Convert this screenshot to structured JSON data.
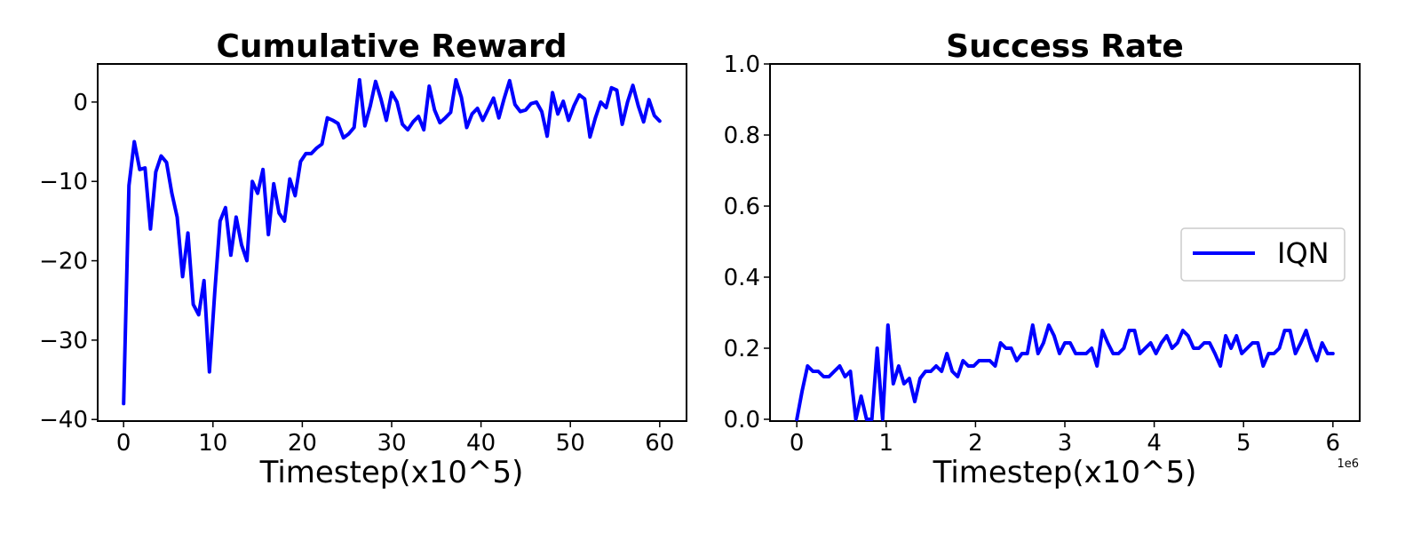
{
  "colors": {
    "series": "#0000ff"
  },
  "chart_data": [
    {
      "type": "line",
      "title": "Cumulative Reward",
      "xlabel": "Timestep(x10^5)",
      "ylabel": "",
      "xlim": [
        -2.9,
        63
      ],
      "ylim": [
        -40.2,
        4.8
      ],
      "xticks": [
        0,
        10,
        20,
        30,
        40,
        50,
        60
      ],
      "xtick_labels": [
        "0",
        "10",
        "20",
        "30",
        "40",
        "50",
        "60"
      ],
      "yticks": [
        0,
        -10,
        -20,
        -30,
        -40
      ],
      "ytick_labels": [
        "0",
        "−10",
        "−20",
        "−30",
        "−40"
      ],
      "grid": false,
      "series": [
        {
          "color": "#0000ff",
          "x": [
            0,
            0.6,
            1.2,
            1.8,
            2.4,
            3.0,
            3.6,
            4.2,
            4.8,
            5.4,
            6.0,
            6.6,
            7.2,
            7.8,
            8.4,
            9.0,
            9.6,
            10.2,
            10.8,
            11.4,
            12.0,
            12.6,
            13.2,
            13.8,
            14.4,
            15.0,
            15.6,
            16.2,
            16.8,
            17.4,
            18.0,
            18.6,
            19.2,
            19.8,
            20.4,
            21.0,
            21.6,
            22.2,
            22.8,
            23.4,
            24.0,
            24.6,
            25.2,
            25.8,
            26.4,
            27.0,
            27.6,
            28.2,
            28.8,
            29.4,
            30.0,
            30.6,
            31.2,
            31.8,
            32.4,
            33.0,
            33.6,
            34.2,
            34.8,
            35.4,
            36.0,
            36.6,
            37.2,
            37.8,
            38.4,
            39.0,
            39.6,
            40.2,
            40.8,
            41.4,
            42.0,
            42.6,
            43.2,
            43.8,
            44.4,
            45.0,
            45.6,
            46.2,
            46.8,
            47.4,
            48.0,
            48.6,
            49.2,
            49.8,
            50.4,
            51.0,
            51.6,
            52.2,
            52.8,
            53.4,
            54.0,
            54.6,
            55.2,
            55.8,
            56.4,
            57.0,
            57.6,
            58.2,
            58.8,
            59.4,
            60.0
          ],
          "y": [
            -38.0,
            -10.5,
            -5.0,
            -8.5,
            -8.3,
            -16.0,
            -8.8,
            -6.8,
            -7.6,
            -11.5,
            -14.5,
            -22.0,
            -16.5,
            -25.5,
            -26.8,
            -22.5,
            -34.0,
            -24.0,
            -15.0,
            -13.3,
            -19.3,
            -14.5,
            -18.0,
            -20.0,
            -10.0,
            -11.5,
            -8.5,
            -16.7,
            -10.3,
            -14.0,
            -15.0,
            -9.7,
            -11.8,
            -7.5,
            -6.5,
            -6.5,
            -5.8,
            -5.3,
            -2.0,
            -2.3,
            -2.7,
            -4.5,
            -4.0,
            -3.2,
            2.8,
            -3.0,
            -0.5,
            2.6,
            0.4,
            -2.3,
            1.2,
            0.0,
            -2.8,
            -3.5,
            -2.5,
            -1.8,
            -3.5,
            2.0,
            -1.0,
            -2.6,
            -2.0,
            -1.3,
            2.8,
            0.6,
            -3.2,
            -1.5,
            -0.8,
            -2.3,
            -0.9,
            0.5,
            -2.0,
            0.5,
            2.7,
            -0.3,
            -1.2,
            -1.0,
            -0.2,
            0.0,
            -1.2,
            -4.3,
            1.2,
            -1.5,
            0.1,
            -2.3,
            -0.5,
            0.9,
            0.4,
            -4.4,
            -2.0,
            0.0,
            -0.7,
            1.8,
            1.5,
            -2.8,
            0.0,
            2.1,
            -0.5,
            -2.5,
            0.3,
            -1.7,
            -2.4
          ]
        }
      ]
    },
    {
      "type": "line",
      "title": "Success Rate",
      "xlabel": "Timestep(x10^5)",
      "ylabel": "",
      "x_offset_label": "1e6",
      "xlim": [
        -0.3,
        6.3
      ],
      "ylim": [
        -0.005,
        1.0
      ],
      "xticks": [
        0,
        1,
        2,
        3,
        4,
        5,
        6
      ],
      "xtick_labels": [
        "0",
        "1",
        "2",
        "3",
        "4",
        "5",
        "6"
      ],
      "yticks": [
        0.0,
        0.2,
        0.4,
        0.6,
        0.8,
        1.0
      ],
      "ytick_labels": [
        "0.0",
        "0.2",
        "0.4",
        "0.6",
        "0.8",
        "1.0"
      ],
      "grid": false,
      "legend": {
        "position": "center-right",
        "entries": [
          "IQN"
        ]
      },
      "series": [
        {
          "name": "IQN",
          "color": "#0000ff",
          "x": [
            0,
            0.06,
            0.12,
            0.18,
            0.24,
            0.3,
            0.36,
            0.42,
            0.48,
            0.54,
            0.6,
            0.66,
            0.72,
            0.78,
            0.84,
            0.9,
            0.96,
            1.02,
            1.08,
            1.14,
            1.2,
            1.26,
            1.32,
            1.38,
            1.44,
            1.5,
            1.56,
            1.62,
            1.68,
            1.74,
            1.8,
            1.86,
            1.92,
            1.98,
            2.04,
            2.1,
            2.16,
            2.22,
            2.28,
            2.34,
            2.4,
            2.46,
            2.52,
            2.58,
            2.64,
            2.7,
            2.76,
            2.82,
            2.88,
            2.94,
            3.0,
            3.06,
            3.12,
            3.18,
            3.24,
            3.3,
            3.36,
            3.42,
            3.48,
            3.54,
            3.6,
            3.66,
            3.72,
            3.78,
            3.84,
            3.9,
            3.96,
            4.02,
            4.08,
            4.14,
            4.2,
            4.26,
            4.32,
            4.38,
            4.44,
            4.5,
            4.56,
            4.62,
            4.68,
            4.74,
            4.8,
            4.86,
            4.92,
            4.98,
            5.04,
            5.1,
            5.16,
            5.22,
            5.28,
            5.34,
            5.4,
            5.46,
            5.52,
            5.58,
            5.64,
            5.7,
            5.76,
            5.82,
            5.88,
            5.94,
            6.0
          ],
          "y": [
            0.0,
            0.08,
            0.15,
            0.135,
            0.135,
            0.12,
            0.12,
            0.135,
            0.15,
            0.12,
            0.135,
            0.0,
            0.065,
            0.0,
            0.0,
            0.2,
            0.0,
            0.265,
            0.1,
            0.15,
            0.1,
            0.115,
            0.05,
            0.115,
            0.135,
            0.135,
            0.15,
            0.135,
            0.185,
            0.135,
            0.12,
            0.165,
            0.15,
            0.15,
            0.165,
            0.165,
            0.165,
            0.15,
            0.215,
            0.2,
            0.2,
            0.165,
            0.185,
            0.185,
            0.265,
            0.185,
            0.215,
            0.265,
            0.235,
            0.185,
            0.215,
            0.215,
            0.185,
            0.185,
            0.185,
            0.2,
            0.15,
            0.25,
            0.215,
            0.185,
            0.185,
            0.2,
            0.25,
            0.25,
            0.185,
            0.2,
            0.215,
            0.185,
            0.215,
            0.235,
            0.2,
            0.215,
            0.25,
            0.235,
            0.2,
            0.2,
            0.215,
            0.215,
            0.185,
            0.15,
            0.235,
            0.2,
            0.235,
            0.185,
            0.2,
            0.215,
            0.215,
            0.15,
            0.185,
            0.185,
            0.2,
            0.25,
            0.25,
            0.185,
            0.215,
            0.25,
            0.2,
            0.165,
            0.215,
            0.185,
            0.185
          ]
        }
      ]
    }
  ]
}
